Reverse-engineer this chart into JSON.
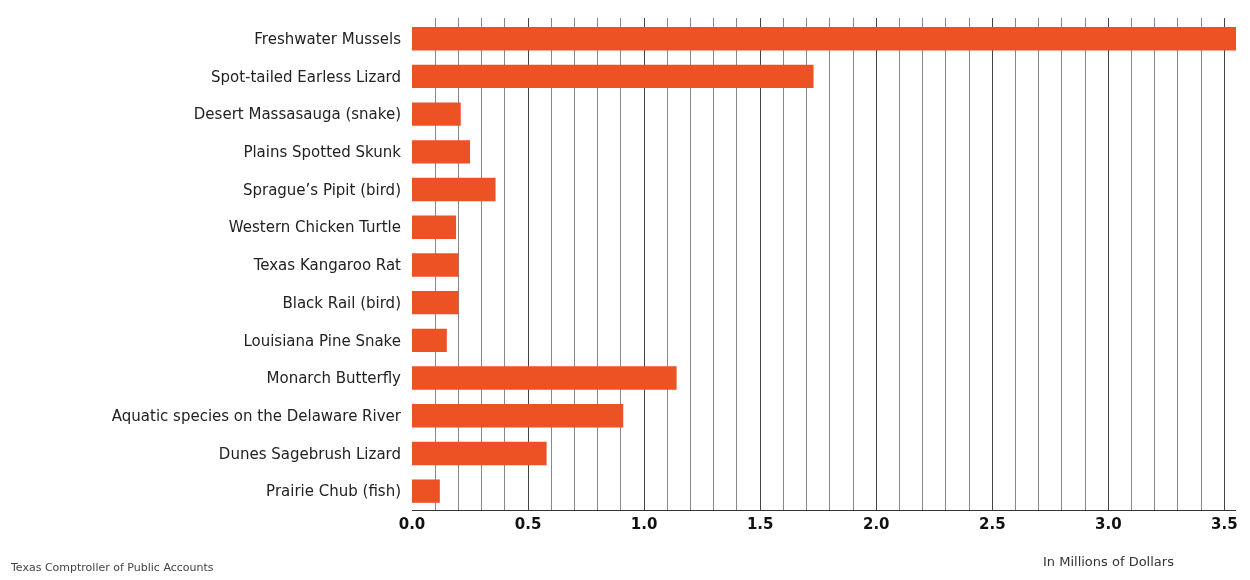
{
  "chart_data": {
    "type": "bar",
    "orientation": "horizontal",
    "categories": [
      "Freshwater Mussels",
      "Spot-tailed Earless Lizard",
      "Desert Massasauga (snake)",
      "Plains Spotted Skunk",
      "Sprague’s Pipit (bird)",
      "Western Chicken Turtle",
      "Texas Kangaroo Rat",
      "Black Rail (bird)",
      "Louisiana Pine Snake",
      "Monarch Butterfly",
      "Aquatic species on the Delaware River",
      "Dunes Sagebrush Lizard",
      "Prairie Chub (fish)"
    ],
    "values": [
      3.55,
      1.73,
      0.21,
      0.25,
      0.36,
      0.19,
      0.2,
      0.2,
      0.15,
      1.14,
      0.91,
      0.58,
      0.12
    ],
    "color": "#ec5224",
    "xlim": [
      0,
      3.55
    ],
    "xticks": [
      {
        "value": 0,
        "label": "0.0"
      },
      {
        "value": 0.5,
        "label": "0.5"
      },
      {
        "value": 1,
        "label": "1.0"
      },
      {
        "value": 1.5,
        "label": "1.5"
      },
      {
        "value": 2,
        "label": "2.0"
      },
      {
        "value": 2.5,
        "label": "2.5"
      },
      {
        "value": 3,
        "label": "3.0"
      },
      {
        "value": 3.5,
        "label": "3.5"
      }
    ],
    "xlabel": "In Millions of Dollars",
    "grid": "x",
    "annotations": [
      "Texas Comptroller of Public Accounts"
    ]
  }
}
